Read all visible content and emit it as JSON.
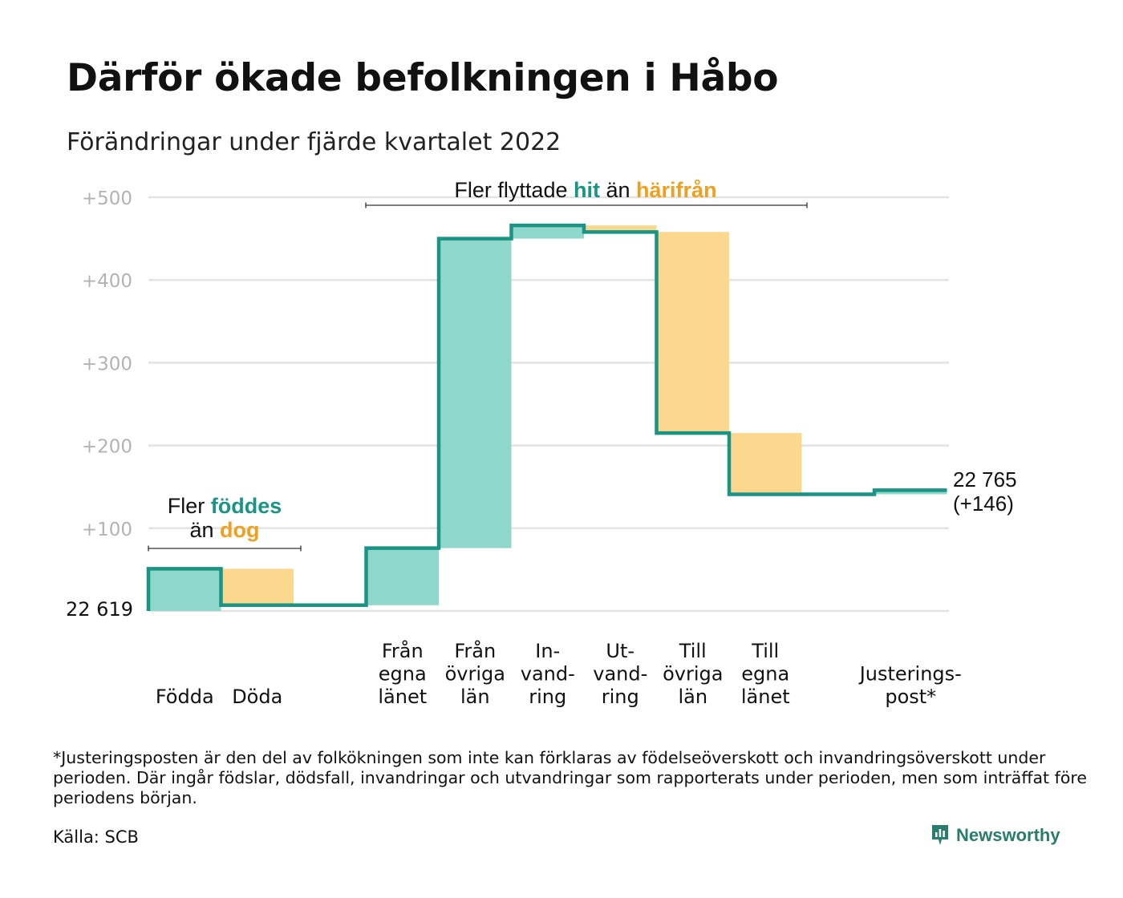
{
  "title": "Därför ökade befolkningen i Håbo",
  "subtitle": "Förändringar under fjärde kvartalet 2022",
  "footnote": "*Justeringsposten är den del av folkökningen som inte kan förklaras av födelseöverskott och invandringsöverskott under perioden. Där ingår födslar, dödsfall, invandringar och utvandringar som rapporterats under perioden, men som inträffat före periodens början.",
  "source": "Källa: SCB",
  "brand": "Newsworthy",
  "colors": {
    "increase_fill": "#8fd6cb",
    "decrease_fill": "#fbd88e",
    "step_line": "#1a9484",
    "teal_text": "#1a9484",
    "orange_text": "#f0a020",
    "grid": "#e3e3e3",
    "tick": "#b3b3b3"
  },
  "chart_data": {
    "type": "waterfall",
    "baseline_label": "22 619",
    "end_label": [
      "22 765",
      "(+146)"
    ],
    "ylim": [
      0,
      500
    ],
    "yticks": [
      "+100",
      "+200",
      "+300",
      "+400",
      "+500"
    ],
    "ytick_values": [
      100,
      200,
      300,
      400,
      500
    ],
    "grid": true,
    "categories": [
      {
        "label": [
          "Födda"
        ],
        "value": 51
      },
      {
        "label": [
          "Döda"
        ],
        "value": -44
      },
      {
        "label": [],
        "value": 0
      },
      {
        "label": [
          "Från",
          "egna",
          "länet"
        ],
        "value": 69
      },
      {
        "label": [
          "Från",
          "övriga",
          "län"
        ],
        "value": 374
      },
      {
        "label": [
          "In-",
          "vand-",
          "ring"
        ],
        "value": 16
      },
      {
        "label": [
          "Ut-",
          "vand-",
          "ring"
        ],
        "value": -8
      },
      {
        "label": [
          "Till",
          "övriga",
          "län"
        ],
        "value": -243
      },
      {
        "label": [
          "Till",
          "egna",
          "länet"
        ],
        "value": -74
      },
      {
        "label": [],
        "value": 0
      },
      {
        "label": [
          "Justerings-",
          "post*"
        ],
        "value": 5
      }
    ],
    "annotations": [
      {
        "parts": [
          [
            "Fler ",
            "plain"
          ],
          [
            "föddes",
            "teal"
          ]
        ],
        "parts2": [
          [
            "än ",
            "plain"
          ],
          [
            "dog",
            "orange"
          ]
        ]
      },
      {
        "parts": [
          [
            "Fler flyttade ",
            "plain"
          ],
          [
            "hit",
            "teal"
          ],
          [
            " än ",
            "plain"
          ],
          [
            "härifrån",
            "orange"
          ]
        ]
      }
    ]
  }
}
